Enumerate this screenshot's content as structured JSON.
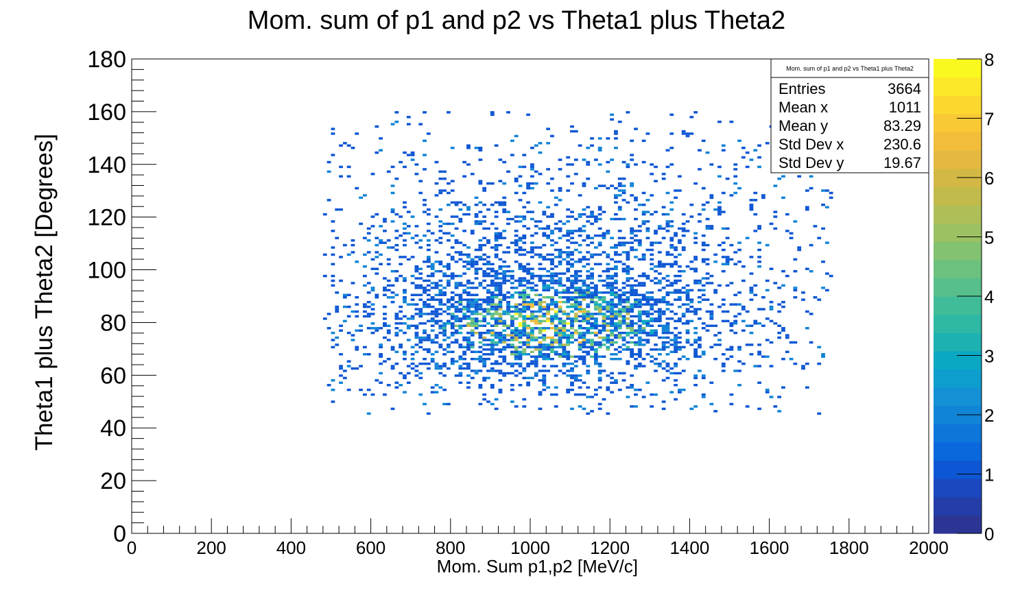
{
  "chart_data": {
    "type": "heatmap",
    "title": "Mom. sum of p1 and p2 vs Theta1 plus Theta2",
    "xlabel": "Mom. Sum p1,p2 [MeV/c]",
    "ylabel": "Theta1 plus Theta2 [Degrees]",
    "xlim": [
      0,
      2000
    ],
    "ylim": [
      0,
      180
    ],
    "xticks": [
      "0",
      "200",
      "400",
      "600",
      "800",
      "1000",
      "1200",
      "1400",
      "1600",
      "1800",
      "2000"
    ],
    "yticks": [
      "0",
      "20",
      "40",
      "60",
      "80",
      "100",
      "120",
      "140",
      "160",
      "180"
    ],
    "zlim": [
      0,
      8
    ],
    "zticks": [
      "0",
      "1",
      "2",
      "3",
      "4",
      "5",
      "6",
      "7",
      "8"
    ],
    "grid": false,
    "palette": [
      "#2c3593",
      "#253da8",
      "#1b48c0",
      "#0e57d4",
      "#0a67dc",
      "#0d76db",
      "#1184d6",
      "#1391d4",
      "#0d9ecd",
      "#0aa8c3",
      "#1eb1b2",
      "#2eb8a4",
      "#41bc98",
      "#56bf8c",
      "#6cc17f",
      "#83c270",
      "#9bc162",
      "#b0be57",
      "#c3ba4c",
      "#d3b845",
      "#e4b940",
      "#f1bd3a",
      "#f9c835",
      "#fbd82e",
      "#fce828",
      "#f9f91f"
    ],
    "distribution": {
      "x_range": [
        480,
        1760
      ],
      "y_range": [
        45,
        160
      ],
      "peak_x": 1050,
      "peak_y": 80,
      "max_count": 8
    },
    "stats": {
      "name": "Mom. sum of p1 and p2 vs Theta1 plus Theta2",
      "rows": [
        {
          "label": "Entries",
          "value": "3664"
        },
        {
          "label": "Mean x",
          "value": "1011"
        },
        {
          "label": "Mean y",
          "value": "83.29"
        },
        {
          "label": "Std Dev x",
          "value": "230.6"
        },
        {
          "label": "Std Dev y",
          "value": "19.67"
        }
      ]
    }
  }
}
